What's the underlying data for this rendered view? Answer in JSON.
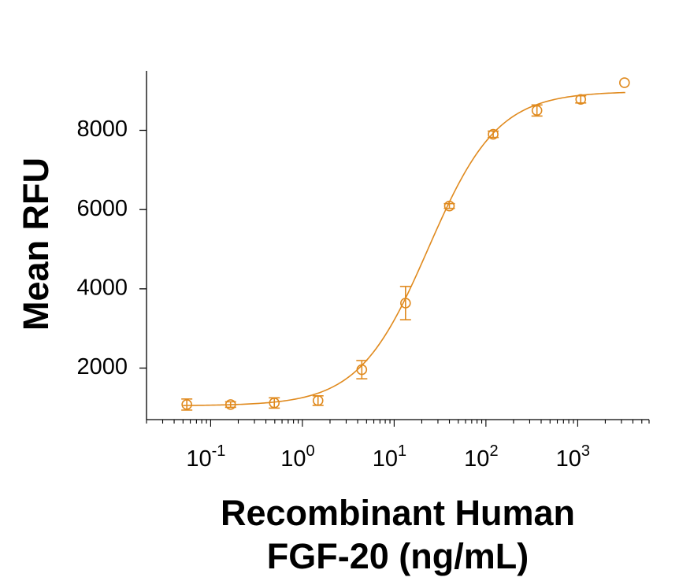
{
  "chart_data": {
    "type": "scatter",
    "title": "",
    "xlabel": [
      "Recombinant Human",
      "FGF-20 (ng/mL)"
    ],
    "ylabel": "Mean RFU",
    "x_scale": "log",
    "xlim": [
      0.02,
      6000
    ],
    "ylim": [
      700,
      9500
    ],
    "color": "#E08A1E",
    "x_ticks": [
      {
        "value": 0.1,
        "base": "10",
        "exp": "-1"
      },
      {
        "value": 1,
        "base": "10",
        "exp": "0"
      },
      {
        "value": 10,
        "base": "10",
        "exp": "1"
      },
      {
        "value": 100,
        "base": "10",
        "exp": "2"
      },
      {
        "value": 1000,
        "base": "10",
        "exp": "3"
      }
    ],
    "y_ticks": [
      {
        "value": 2000,
        "label": "2000"
      },
      {
        "value": 4000,
        "label": "4000"
      },
      {
        "value": 6000,
        "label": "6000"
      },
      {
        "value": 8000,
        "label": "8000"
      }
    ],
    "series": [
      {
        "points": [
          {
            "x": 0.055,
            "y": 1080,
            "err": 140
          },
          {
            "x": 0.165,
            "y": 1080,
            "err": 70
          },
          {
            "x": 0.494,
            "y": 1120,
            "err": 130
          },
          {
            "x": 1.48,
            "y": 1180,
            "err": 120
          },
          {
            "x": 4.44,
            "y": 1960,
            "err": 230
          },
          {
            "x": 13.3,
            "y": 3640,
            "err": 420
          },
          {
            "x": 40,
            "y": 6090,
            "err": 60
          },
          {
            "x": 120,
            "y": 7900,
            "err": 80
          },
          {
            "x": 360,
            "y": 8500,
            "err": 140
          },
          {
            "x": 1080,
            "y": 8780,
            "err": 90
          },
          {
            "x": 3240,
            "y": 9200,
            "err": 0
          }
        ],
        "fit": {
          "model": "4PL",
          "bottom": 1050,
          "top": 8980,
          "ec50": 23.5,
          "hill": 1.15,
          "x_range": [
            0.05,
            3300
          ]
        }
      }
    ]
  }
}
